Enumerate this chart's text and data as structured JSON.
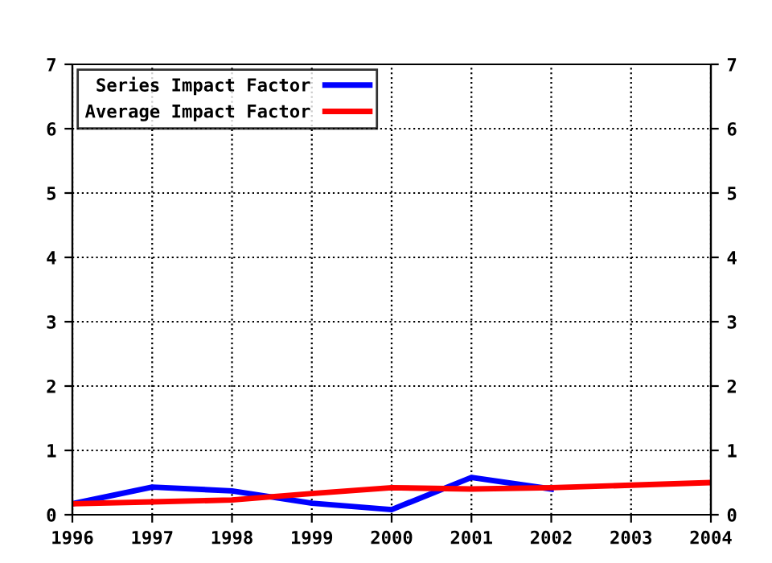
{
  "chart_data": {
    "type": "line",
    "x": [
      1996,
      1997,
      1998,
      1999,
      2000,
      2001,
      2002,
      2003,
      2004
    ],
    "series": [
      {
        "name": "Series Impact Factor",
        "color": "#0000ff",
        "values": [
          0.17,
          0.43,
          0.37,
          0.18,
          0.08,
          0.58,
          0.4,
          null,
          null
        ]
      },
      {
        "name": "Average Impact Factor",
        "color": "#ff0000",
        "values": [
          0.17,
          0.2,
          0.23,
          0.33,
          0.42,
          0.4,
          0.42,
          0.46,
          0.5
        ]
      }
    ],
    "xlim": [
      1996,
      2004
    ],
    "xticks": [
      1996,
      1997,
      1998,
      1999,
      2000,
      2001,
      2002,
      2003,
      2004
    ],
    "ylim": [
      0,
      7
    ],
    "yticks": [
      0,
      1,
      2,
      3,
      4,
      5,
      6,
      7
    ],
    "y2lim": [
      0,
      7
    ],
    "y2ticks": [
      0,
      1,
      2,
      3,
      4,
      5,
      6,
      7
    ],
    "grid": true,
    "legend": "top left",
    "marker": "none",
    "line_style": "solid"
  }
}
